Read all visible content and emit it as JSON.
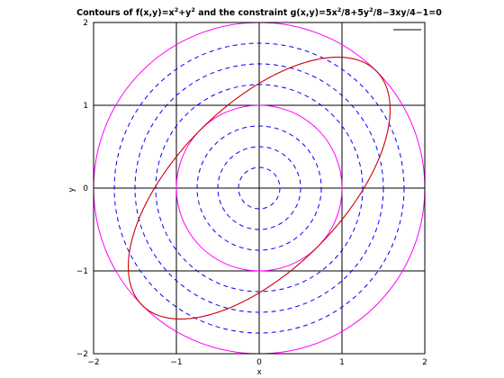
{
  "chart_data": {
    "type": "line",
    "title": {
      "prefix": "Contours of f(x,y)=x",
      "exp1": "2",
      "mid1": "+y",
      "exp2": "2",
      "mid2": " and the constraint g(x,y)=5x",
      "exp3": "2",
      "mid3": "/8+5y",
      "exp4": "2",
      "suffix": "/8−3xy/4−1=0"
    },
    "xlabel": "x",
    "ylabel": "y",
    "xlim": [
      -2,
      2
    ],
    "ylim": [
      -2,
      2
    ],
    "xticks": [
      "−2",
      "−1",
      "0",
      "1",
      "2"
    ],
    "yticks": [
      "−2",
      "−1",
      "0",
      "1",
      "2"
    ],
    "grid": true,
    "legend_placement": "top-right",
    "contours_f": {
      "dashed_blue_radii": [
        0.25,
        0.5,
        0.75,
        1.25,
        1.5,
        1.75
      ],
      "solid_magenta_radii": [
        1.0,
        2.0
      ],
      "dashed_color": "#0000ff",
      "solid_color": "#ff00ff"
    },
    "constraint_g": {
      "equation_coeffs": {
        "xx": 0.625,
        "yy": 0.625,
        "xy": -0.75,
        "const": -1
      },
      "color": "#cc0000"
    },
    "legend_line_color": "#000000"
  }
}
